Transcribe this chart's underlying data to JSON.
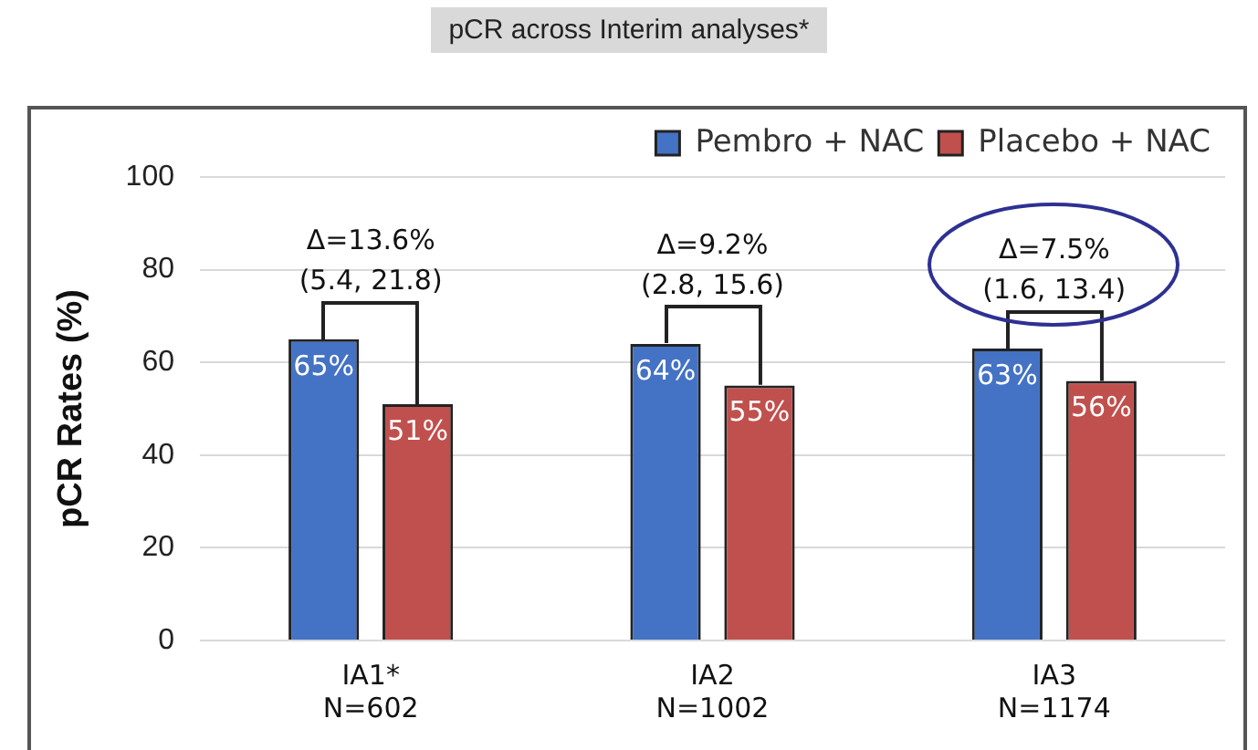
{
  "chart_data": {
    "type": "bar",
    "title": "pCR across Interim analyses*",
    "ylabel": "pCR Rates (%)",
    "categories": [
      "IA1*\nN=602",
      "IA2\nN=1002",
      "IA3\nN=1174"
    ],
    "series": [
      {
        "name": "Pembro + NAC",
        "color": "#4472c4",
        "values": [
          65,
          64,
          63
        ],
        "value_labels": [
          "65%",
          "64%",
          "63%"
        ]
      },
      {
        "name": "Placebo + NAC",
        "color": "#c0504d",
        "values": [
          51,
          55,
          56
        ],
        "value_labels": [
          "51%",
          "55%",
          "56%"
        ]
      }
    ],
    "ylim": [
      0,
      100
    ],
    "yticks": [
      0,
      20,
      40,
      60,
      80,
      100
    ],
    "grid": "y",
    "legend": "top right",
    "annotations": [
      "Δ=13.6%\n(5.4, 21.8)",
      "Δ=9.2%\n(2.8, 15.6)",
      "Δ=7.5%\n(1.6, 13.4)"
    ]
  }
}
